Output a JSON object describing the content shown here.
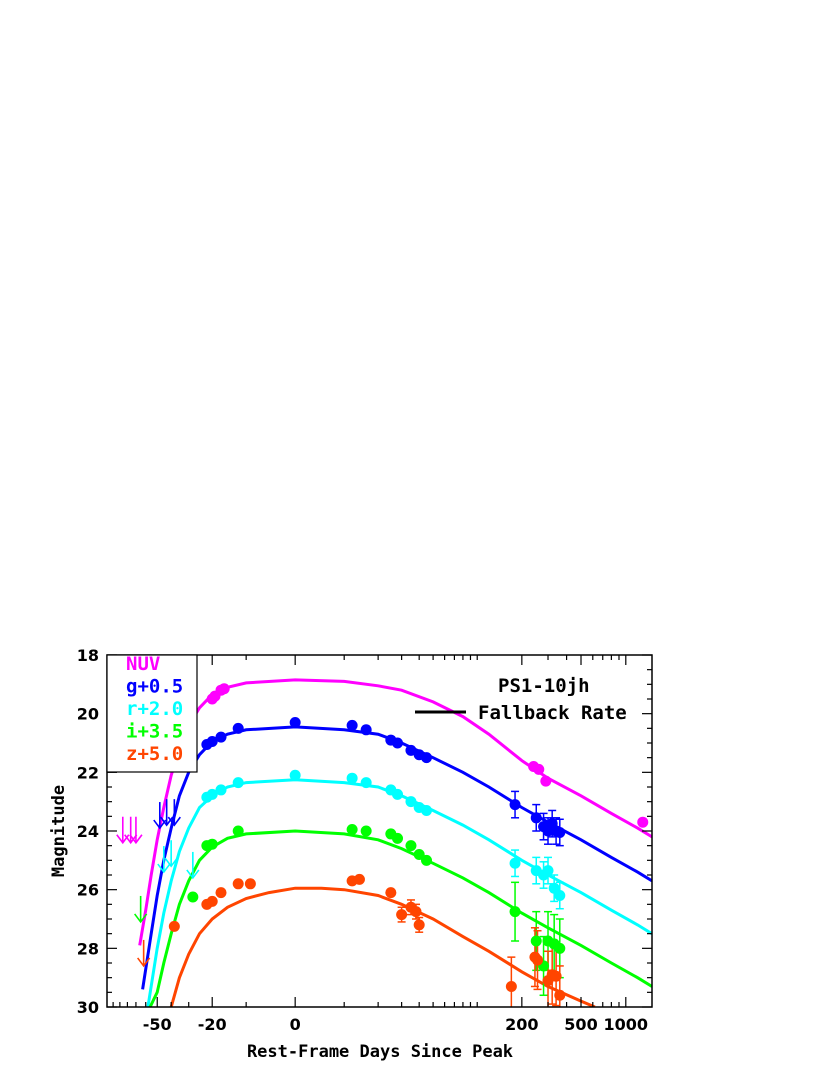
{
  "chart_data": {
    "type": "scatter",
    "title": "",
    "xlabel": "Rest-Frame Days Since Peak",
    "ylabel": "Magnitude",
    "x_scale": "asinh",
    "xlim": [
      -110,
      1500
    ],
    "ylim": [
      30,
      18
    ],
    "y_inverted": true,
    "grid": false,
    "x_ticks": [
      {
        "value": -50,
        "label": "-50"
      },
      {
        "value": -20,
        "label": "-20"
      },
      {
        "value": 0,
        "label": "0"
      },
      {
        "value": 200,
        "label": "200"
      },
      {
        "value": 500,
        "label": "500"
      },
      {
        "value": 1000,
        "label": "1000"
      }
    ],
    "y_ticks": [
      {
        "value": 18,
        "label": "18"
      },
      {
        "value": 20,
        "label": "20"
      },
      {
        "value": 22,
        "label": "22"
      },
      {
        "value": 24,
        "label": "24"
      },
      {
        "value": 26,
        "label": "26"
      },
      {
        "value": 28,
        "label": "28"
      },
      {
        "value": 30,
        "label": "30"
      }
    ],
    "annotation": "PS1-10jh",
    "legend_placement": "top-left",
    "model_legend": "Fallback Rate",
    "series": [
      {
        "name": "NUV",
        "color": "#ff00ff",
        "points": [
          [
            -20,
            19.5
          ],
          [
            -19,
            19.4
          ],
          [
            -17,
            19.2
          ],
          [
            -16,
            19.15
          ],
          [
            240,
            21.8
          ],
          [
            260,
            21.9
          ],
          [
            290,
            22.3
          ],
          [
            1300,
            23.7
          ]
        ],
        "upper_limits": [
          [
            -86,
            24.4
          ],
          [
            -76,
            24.4
          ],
          [
            -70,
            24.4
          ]
        ],
        "model": [
          [
            -66,
            27.9
          ],
          [
            -60,
            26.7
          ],
          [
            -55,
            25.5
          ],
          [
            -50,
            24.3
          ],
          [
            -45,
            23.2
          ],
          [
            -40,
            22.1
          ],
          [
            -35,
            21.2
          ],
          [
            -30,
            20.4
          ],
          [
            -25,
            19.8
          ],
          [
            -20,
            19.35
          ],
          [
            -15,
            19.1
          ],
          [
            -10,
            18.95
          ],
          [
            0,
            18.85
          ],
          [
            10,
            18.9
          ],
          [
            20,
            19.05
          ],
          [
            30,
            19.2
          ],
          [
            50,
            19.6
          ],
          [
            80,
            20.1
          ],
          [
            120,
            20.7
          ],
          [
            200,
            21.6
          ],
          [
            300,
            22.2
          ],
          [
            500,
            22.8
          ],
          [
            800,
            23.4
          ],
          [
            1200,
            23.9
          ],
          [
            1500,
            24.2
          ]
        ]
      },
      {
        "name": "g+0.5",
        "color": "#0000ff",
        "points": [
          [
            -22,
            21.05
          ],
          [
            -20,
            20.95
          ],
          [
            -17,
            20.8
          ],
          [
            -12,
            20.5
          ],
          [
            0,
            20.3
          ],
          [
            12,
            20.4
          ],
          [
            16,
            20.55
          ],
          [
            25,
            20.9
          ],
          [
            28,
            21.0
          ],
          [
            35,
            21.25
          ],
          [
            40,
            21.4
          ],
          [
            45,
            21.5
          ],
          [
            180,
            23.1
          ],
          [
            250,
            23.55
          ],
          [
            280,
            23.85
          ],
          [
            300,
            24.0
          ],
          [
            320,
            23.75
          ],
          [
            340,
            24.0
          ],
          [
            360,
            24.05
          ]
        ],
        "upper_limits": [
          [
            -48,
            23.9
          ],
          [
            -43,
            23.8
          ],
          [
            -38,
            23.8
          ]
        ],
        "model": [
          [
            -63,
            29.4
          ],
          [
            -55,
            27.5
          ],
          [
            -50,
            26.2
          ],
          [
            -45,
            25.0
          ],
          [
            -40,
            23.9
          ],
          [
            -35,
            22.8
          ],
          [
            -30,
            22.0
          ],
          [
            -25,
            21.4
          ],
          [
            -20,
            20.95
          ],
          [
            -15,
            20.7
          ],
          [
            -10,
            20.55
          ],
          [
            0,
            20.45
          ],
          [
            10,
            20.55
          ],
          [
            20,
            20.7
          ],
          [
            30,
            21.0
          ],
          [
            50,
            21.5
          ],
          [
            80,
            22.0
          ],
          [
            120,
            22.5
          ],
          [
            200,
            23.2
          ],
          [
            300,
            23.7
          ],
          [
            500,
            24.3
          ],
          [
            800,
            24.9
          ],
          [
            1200,
            25.4
          ],
          [
            1500,
            25.7
          ]
        ]
      },
      {
        "name": "r+2.0",
        "color": "#00ffff",
        "points": [
          [
            -22,
            22.85
          ],
          [
            -20,
            22.75
          ],
          [
            -17,
            22.6
          ],
          [
            -12,
            22.35
          ],
          [
            0,
            22.1
          ],
          [
            12,
            22.2
          ],
          [
            16,
            22.35
          ],
          [
            25,
            22.6
          ],
          [
            28,
            22.75
          ],
          [
            35,
            23.0
          ],
          [
            40,
            23.2
          ],
          [
            45,
            23.3
          ],
          [
            180,
            25.1
          ],
          [
            250,
            25.35
          ],
          [
            280,
            25.5
          ],
          [
            300,
            25.35
          ],
          [
            330,
            25.95
          ],
          [
            360,
            26.2
          ]
        ],
        "upper_limits": [
          [
            -45,
            25.4
          ],
          [
            -40,
            25.2
          ],
          [
            -28,
            25.6
          ]
        ],
        "model": [
          [
            -58,
            30.0
          ],
          [
            -50,
            28.0
          ],
          [
            -45,
            26.8
          ],
          [
            -40,
            25.7
          ],
          [
            -35,
            24.7
          ],
          [
            -30,
            23.9
          ],
          [
            -25,
            23.2
          ],
          [
            -20,
            22.8
          ],
          [
            -15,
            22.5
          ],
          [
            -10,
            22.35
          ],
          [
            0,
            22.25
          ],
          [
            10,
            22.35
          ],
          [
            20,
            22.5
          ],
          [
            30,
            22.8
          ],
          [
            50,
            23.3
          ],
          [
            80,
            23.8
          ],
          [
            120,
            24.3
          ],
          [
            200,
            25.0
          ],
          [
            300,
            25.5
          ],
          [
            500,
            26.1
          ],
          [
            800,
            26.7
          ],
          [
            1200,
            27.2
          ],
          [
            1500,
            27.5
          ]
        ]
      },
      {
        "name": "i+3.5",
        "color": "#00ff00",
        "points": [
          [
            -28,
            26.25
          ],
          [
            -22,
            24.5
          ],
          [
            -20,
            24.45
          ],
          [
            -12,
            24.0
          ],
          [
            12,
            23.95
          ],
          [
            16,
            24.0
          ],
          [
            25,
            24.1
          ],
          [
            28,
            24.25
          ],
          [
            35,
            24.5
          ],
          [
            40,
            24.8
          ],
          [
            45,
            25.0
          ],
          [
            180,
            26.75
          ],
          [
            250,
            27.75
          ],
          [
            280,
            28.6
          ],
          [
            300,
            27.75
          ],
          [
            330,
            27.85
          ],
          [
            360,
            28.0
          ]
        ],
        "upper_limits": [
          [
            -65,
            27.1
          ]
        ],
        "model": [
          [
            -56,
            30.0
          ],
          [
            -50,
            29.5
          ],
          [
            -45,
            28.5
          ],
          [
            -40,
            27.5
          ],
          [
            -35,
            26.5
          ],
          [
            -30,
            25.7
          ],
          [
            -25,
            25.0
          ],
          [
            -20,
            24.55
          ],
          [
            -15,
            24.25
          ],
          [
            -10,
            24.1
          ],
          [
            0,
            24.0
          ],
          [
            10,
            24.1
          ],
          [
            20,
            24.3
          ],
          [
            30,
            24.6
          ],
          [
            50,
            25.1
          ],
          [
            80,
            25.6
          ],
          [
            120,
            26.1
          ],
          [
            200,
            26.8
          ],
          [
            300,
            27.3
          ],
          [
            500,
            27.9
          ],
          [
            800,
            28.5
          ],
          [
            1200,
            29.0
          ],
          [
            1500,
            29.3
          ]
        ]
      },
      {
        "name": "z+5.0",
        "color": "#ff4500",
        "points": [
          [
            -38,
            27.25
          ],
          [
            -22,
            26.5
          ],
          [
            -20,
            26.4
          ],
          [
            -17,
            26.1
          ],
          [
            -12,
            25.8
          ],
          [
            -9,
            25.8
          ],
          [
            12,
            25.7
          ],
          [
            14,
            25.65
          ],
          [
            25,
            26.1
          ],
          [
            30,
            26.85
          ],
          [
            35,
            26.6
          ],
          [
            38,
            26.75
          ],
          [
            40,
            27.2
          ],
          [
            170,
            29.3
          ],
          [
            245,
            28.3
          ],
          [
            255,
            28.4
          ],
          [
            300,
            29.1
          ],
          [
            320,
            28.9
          ],
          [
            340,
            28.95
          ],
          [
            360,
            29.6
          ]
        ],
        "upper_limits": [
          [
            -62,
            28.6
          ]
        ],
        "model": [
          [
            -40,
            30.0
          ],
          [
            -35,
            29.0
          ],
          [
            -30,
            28.2
          ],
          [
            -25,
            27.5
          ],
          [
            -20,
            27.0
          ],
          [
            -15,
            26.6
          ],
          [
            -10,
            26.3
          ],
          [
            -5,
            26.1
          ],
          [
            0,
            25.95
          ],
          [
            5,
            25.95
          ],
          [
            10,
            26.0
          ],
          [
            20,
            26.2
          ],
          [
            30,
            26.5
          ],
          [
            50,
            27.0
          ],
          [
            80,
            27.6
          ],
          [
            120,
            28.1
          ],
          [
            200,
            28.8
          ],
          [
            300,
            29.3
          ],
          [
            500,
            29.8
          ],
          [
            620,
            30.0
          ]
        ]
      }
    ]
  }
}
